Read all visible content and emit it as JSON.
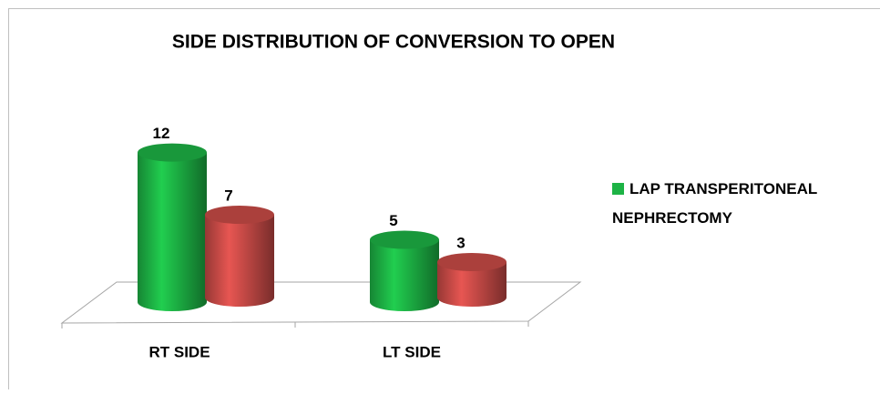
{
  "chart_data": {
    "type": "bar3d",
    "title": "SIDE DISTRIBUTION OF CONVERSION TO OPEN",
    "categories": [
      "RT SIDE",
      "LT SIDE"
    ],
    "series": [
      {
        "name": "LAP TRANSPERITONEAL NEPHRECTOMY",
        "color": "#1db345",
        "values": [
          12,
          5
        ]
      },
      {
        "color": "#c94b47",
        "values": [
          7,
          3
        ]
      }
    ],
    "legend": "right"
  }
}
